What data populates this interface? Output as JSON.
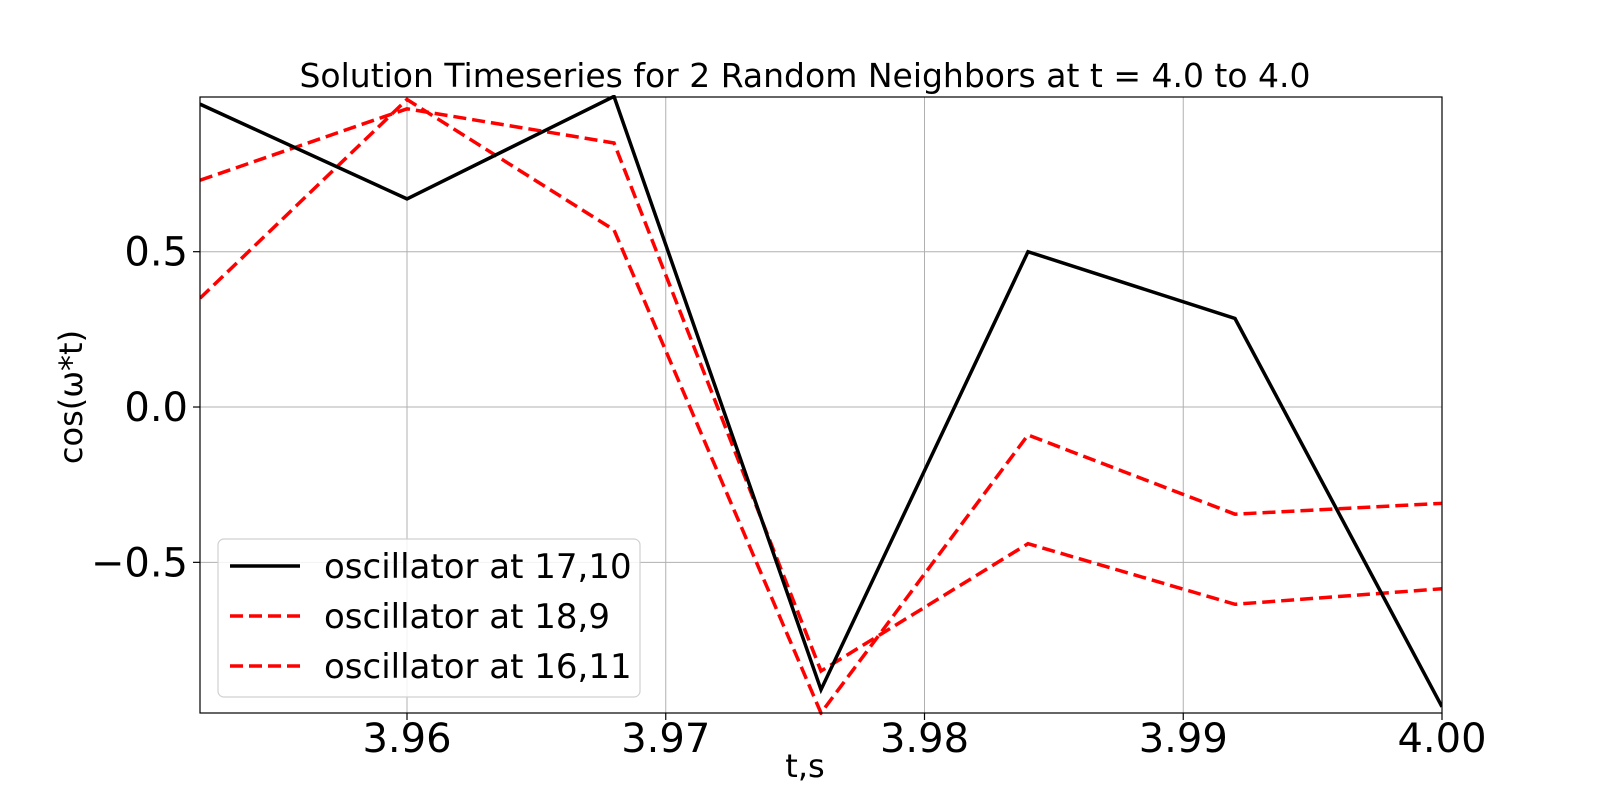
{
  "chart_data": {
    "type": "line",
    "title": "Solution Timeseries for 2 Random Neighbors at t = 4.0 to 4.0",
    "xlabel": "t,s",
    "ylabel": "cos(ω*t)",
    "xlim": [
      3.952,
      4.0
    ],
    "ylim": [
      -0.985,
      0.998
    ],
    "x_ticks": [
      3.96,
      3.97,
      3.98,
      3.99,
      4.0
    ],
    "x_tick_labels": [
      "3.96",
      "3.97",
      "3.98",
      "3.99",
      "4.00"
    ],
    "y_ticks": [
      0.5,
      0.0,
      -0.5
    ],
    "y_tick_labels": [
      "0.5",
      "0.0",
      "−0.5"
    ],
    "grid": true,
    "legend_position": "lower-left",
    "x": [
      3.952,
      3.96,
      3.968,
      3.976,
      3.984,
      3.992,
      4.0
    ],
    "series": [
      {
        "name": "oscillator at 17,10",
        "color": "#000000",
        "style": "solid",
        "values": [
          0.975,
          0.67,
          1.0,
          -0.91,
          0.5,
          0.285,
          -0.965
        ]
      },
      {
        "name": "oscillator at 18,9",
        "color": "#ff0000",
        "style": "dashed",
        "values": [
          0.73,
          0.96,
          0.85,
          -0.85,
          -0.44,
          -0.635,
          -0.585
        ]
      },
      {
        "name": "oscillator at 16,11",
        "color": "#ff0000",
        "style": "dashed",
        "values": [
          0.35,
          0.99,
          0.57,
          -0.985,
          -0.09,
          -0.345,
          -0.31
        ]
      }
    ]
  }
}
